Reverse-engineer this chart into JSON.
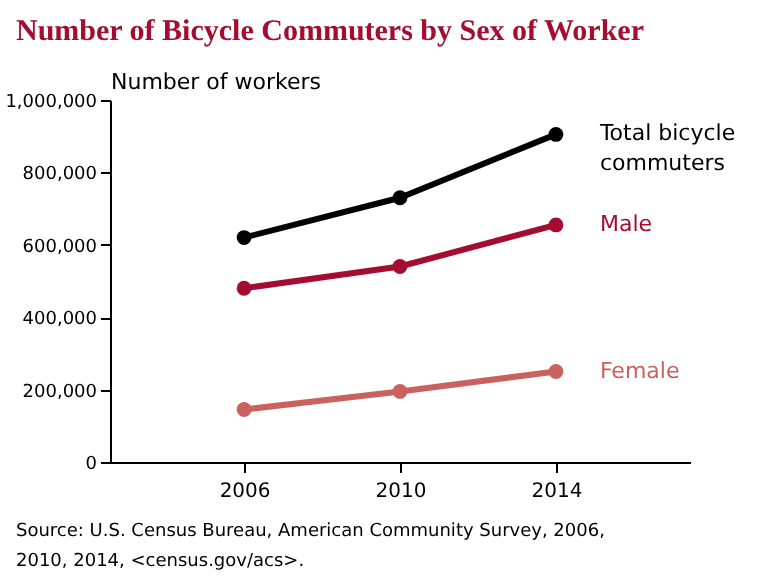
{
  "chart_data": {
    "type": "line",
    "title": "Number of Bicycle Commuters by Sex of Worker",
    "ylabel": "Number of workers",
    "categories": [
      "2006",
      "2010",
      "2014"
    ],
    "series": [
      {
        "name": "Total bicycle commuters",
        "color": "#000000",
        "values": [
          620000,
          730000,
          905000
        ]
      },
      {
        "name": "Male",
        "color": "#a50d30",
        "values": [
          480000,
          540000,
          655000
        ]
      },
      {
        "name": "Female",
        "color": "#c9625f",
        "values": [
          145000,
          195000,
          250000
        ]
      }
    ],
    "ylim": [
      0,
      1000000
    ],
    "yticks": [
      0,
      {
        "value": 200000,
        "label": "200,000"
      },
      {
        "value": 400000,
        "label": "400,000"
      },
      {
        "value": 600000,
        "label": "600,000"
      },
      {
        "value": 800000,
        "label": "800,000"
      },
      {
        "value": 1000000,
        "label": "1,000,000"
      }
    ],
    "grid": false,
    "marker": "circle",
    "line_style": "solid",
    "annotations": [
      "Source: U.S. Census Bureau, American Community Survey, 2006, 2010, 2014, <census.gov/acs>."
    ]
  }
}
